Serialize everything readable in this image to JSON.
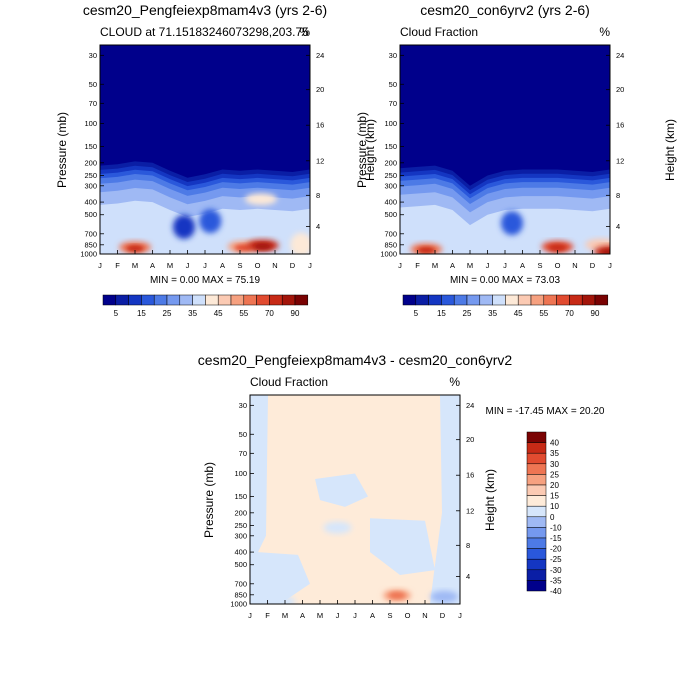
{
  "chart_data": [
    {
      "type": "heatmap",
      "title": "cesm20_Pengfeiexp8mam4v3 (yrs 2-6)",
      "subtitle_left": "CLOUD at 71.15183246073298,203.75",
      "subtitle_right": "%",
      "ylabel": "Pressure (mb)",
      "ylabel_right": "Height (km)",
      "minmax": "MIN =   0.00 MAX =  75.19",
      "months": [
        "J",
        "F",
        "M",
        "A",
        "M",
        "J",
        "J",
        "A",
        "S",
        "O",
        "N",
        "D",
        "J"
      ],
      "pressure_ticks": [
        "30",
        "50",
        "70",
        "100",
        "150",
        "200",
        "250",
        "300",
        "400",
        "500",
        "700",
        "850",
        "1000"
      ],
      "height_ticks": [
        "24",
        "20",
        "16",
        "12",
        "8",
        "4"
      ],
      "legend_labels": [
        "5",
        "15",
        "25",
        "35",
        "45",
        "55",
        "70",
        "90"
      ],
      "cloud_top_mb": [
        210,
        205,
        195,
        200,
        230,
        260,
        245,
        225,
        230,
        225,
        230,
        235,
        225
      ],
      "features": [
        {
          "month": 2.0,
          "p_mb": 890,
          "value": 55
        },
        {
          "month": 4.8,
          "p_mb": 620,
          "value": 10
        },
        {
          "month": 6.3,
          "p_mb": 560,
          "value": 15
        },
        {
          "month": 8.2,
          "p_mb": 880,
          "value": 50
        },
        {
          "month": 9.3,
          "p_mb": 860,
          "value": 70
        },
        {
          "month": 9.2,
          "p_mb": 380,
          "value": 42
        },
        {
          "month": 11.5,
          "p_mb": 850,
          "value": 40
        }
      ]
    },
    {
      "type": "heatmap",
      "title": "cesm20_con6yrv2 (yrs 2-6)",
      "subtitle_left": "Cloud Fraction",
      "subtitle_right": "%",
      "ylabel": "Pressure (mb)",
      "ylabel_right": "Height (km)",
      "minmax": "MIN =   0.00 MAX =  73.03",
      "months": [
        "J",
        "F",
        "M",
        "A",
        "M",
        "J",
        "J",
        "A",
        "S",
        "O",
        "N",
        "D",
        "J"
      ],
      "pressure_ticks": [
        "30",
        "50",
        "70",
        "100",
        "150",
        "200",
        "250",
        "300",
        "400",
        "500",
        "700",
        "850",
        "1000"
      ],
      "height_ticks": [
        "24",
        "20",
        "16",
        "12",
        "8",
        "4"
      ],
      "legend_labels": [
        "5",
        "15",
        "25",
        "35",
        "45",
        "55",
        "70",
        "90"
      ],
      "cloud_top_mb": [
        220,
        215,
        210,
        230,
        300,
        250,
        230,
        225,
        225,
        225,
        230,
        235,
        225
      ],
      "features": [
        {
          "month": 1.5,
          "p_mb": 920,
          "value": 55
        },
        {
          "month": 6.4,
          "p_mb": 580,
          "value": 15
        },
        {
          "month": 9.0,
          "p_mb": 880,
          "value": 60
        },
        {
          "month": 11.5,
          "p_mb": 850,
          "value": 45
        },
        {
          "month": 12.0,
          "p_mb": 960,
          "value": 70
        }
      ]
    },
    {
      "type": "heatmap",
      "title": "cesm20_Pengfeiexp8mam4v3 - cesm20_con6yrv2",
      "subtitle_left": "Cloud Fraction",
      "subtitle_right": "%",
      "ylabel": "Pressure (mb)",
      "ylabel_right": "Height (km)",
      "minmax": "MIN = -17.45 MAX =  20.20",
      "months": [
        "J",
        "F",
        "M",
        "A",
        "M",
        "J",
        "J",
        "A",
        "S",
        "O",
        "N",
        "D",
        "J"
      ],
      "pressure_ticks": [
        "30",
        "50",
        "70",
        "100",
        "150",
        "200",
        "250",
        "300",
        "400",
        "500",
        "700",
        "850",
        "1000"
      ],
      "height_ticks": [
        "24",
        "20",
        "16",
        "12",
        "8",
        "4"
      ],
      "legend_labels": [
        "40",
        "35",
        "30",
        "25",
        "20",
        "15",
        "10",
        "0",
        "-10",
        "-15",
        "-20",
        "-25",
        "-30",
        "-35",
        "-40"
      ],
      "features": [
        {
          "month": 8.4,
          "p_mb": 860,
          "value": 15
        },
        {
          "month": 1.8,
          "p_mb": 960,
          "value": -10
        },
        {
          "month": 11.1,
          "p_mb": 880,
          "value": -15
        },
        {
          "month": 5.0,
          "p_mb": 260,
          "value": -10
        }
      ]
    }
  ],
  "colors": {
    "cloud_scale": [
      "#00008b",
      "#0a1ea5",
      "#1436c2",
      "#2a58db",
      "#4d7ae6",
      "#7599ef",
      "#9fb9f4",
      "#cfe0fb",
      "#fde9d7",
      "#fbcab3",
      "#f6a180",
      "#ee7553",
      "#e14b30",
      "#c72a16",
      "#a3150a",
      "#7a0303"
    ],
    "diff_scale": [
      "#00008b",
      "#0a1ea5",
      "#1436c2",
      "#2a58db",
      "#4d7ae6",
      "#7599ef",
      "#9fb9f4",
      "#d6e6fb",
      "#feebd9",
      "#fbcab3",
      "#f6a180",
      "#ee7553",
      "#e14b30",
      "#c72a16",
      "#7a0303"
    ]
  }
}
